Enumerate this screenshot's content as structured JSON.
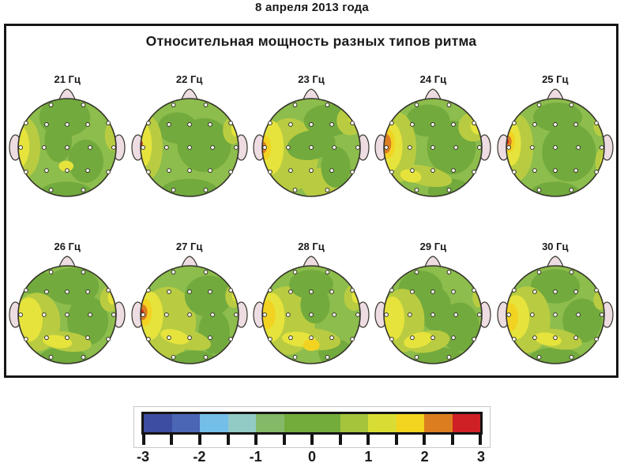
{
  "page": {
    "date_title": "8 апреля 2013 года"
  },
  "chart_data": {
    "type": "heatmap",
    "subtype": "eeg-topographic-map-grid",
    "title": "Относительная мощность разных типов ритма",
    "date_label": "8 апреля 2013 года",
    "grid": {
      "rows": 2,
      "cols": 5
    },
    "frequency_unit": "Гц",
    "value_scale": {
      "min": -3,
      "max": 3,
      "minor_step": 0.5,
      "tick_labels": [
        "-3",
        "-2",
        "-1",
        "0",
        "1",
        "2",
        "3"
      ]
    },
    "colorbar": {
      "segment_colors": [
        "#3d4da1",
        "#4a66b4",
        "#74bfe8",
        "#92cbc5",
        "#83b967",
        "#74ac3c",
        "#74ac3c",
        "#a3c43b",
        "#d9dd33",
        "#f3d41e",
        "#dc7e20",
        "#cf2026"
      ]
    },
    "head": {
      "base_color": "#8dbd4c",
      "outline_color": "#35352b",
      "skin_color": "#eddce2",
      "electrode_fill": "#fffef4",
      "electrode_count": 19,
      "electrode_positions": [
        [
          -0.33,
          -0.87
        ],
        [
          0.33,
          -0.87
        ],
        [
          -0.84,
          -0.5
        ],
        [
          -0.42,
          -0.47
        ],
        [
          0,
          -0.47
        ],
        [
          0.42,
          -0.47
        ],
        [
          0.84,
          -0.5
        ],
        [
          -0.95,
          0
        ],
        [
          -0.47,
          0
        ],
        [
          0,
          0
        ],
        [
          0.47,
          0
        ],
        [
          0.95,
          0
        ],
        [
          -0.84,
          0.5
        ],
        [
          -0.42,
          0.47
        ],
        [
          0,
          0.47
        ],
        [
          0.42,
          0.47
        ],
        [
          0.84,
          0.5
        ],
        [
          -0.33,
          0.87
        ],
        [
          0.33,
          0.87
        ]
      ]
    },
    "palette": {
      "dark": "#72aa3d",
      "yg": "#b9cc41",
      "yellow": "#e6e33c",
      "gold": "#f3d322",
      "orange": "#dc7e22",
      "red": "#cc2c20"
    },
    "blob_format": "c=palette key; x,y=center in head radii (+x right, +y down); rx,ry=radii; rot=degrees",
    "maps": [
      {
        "label": "21 Гц",
        "freq_hz": 21,
        "blobs": [
          {
            "c": "dark",
            "x": -0.05,
            "y": -0.62,
            "rx": 0.52,
            "ry": 0.4,
            "rot": 0
          },
          {
            "c": "dark",
            "x": -0.18,
            "y": -0.15,
            "rx": 0.28,
            "ry": 0.45,
            "rot": 0
          },
          {
            "c": "dark",
            "x": 0.38,
            "y": 0.28,
            "rx": 0.36,
            "ry": 0.44,
            "rot": 0
          },
          {
            "c": "dark",
            "x": -0.02,
            "y": 0.95,
            "rx": 0.55,
            "ry": 0.25,
            "rot": 0
          },
          {
            "c": "yg",
            "x": -0.88,
            "y": 0.0,
            "rx": 0.33,
            "ry": 0.62,
            "rot": 0
          },
          {
            "c": "yellow",
            "x": -0.97,
            "y": -0.02,
            "rx": 0.2,
            "ry": 0.42,
            "rot": 0
          },
          {
            "c": "yg",
            "x": 0.95,
            "y": -0.25,
            "rx": 0.18,
            "ry": 0.32,
            "rot": 0
          },
          {
            "c": "yellow",
            "x": -0.02,
            "y": 0.38,
            "rx": 0.15,
            "ry": 0.11,
            "rot": 0
          }
        ]
      },
      {
        "label": "22 Гц",
        "freq_hz": 22,
        "blobs": [
          {
            "c": "dark",
            "x": 0.3,
            "y": -0.05,
            "rx": 0.55,
            "ry": 0.55,
            "rot": 0
          },
          {
            "c": "dark",
            "x": -0.25,
            "y": -0.4,
            "rx": 0.4,
            "ry": 0.32,
            "rot": 0
          },
          {
            "c": "dark",
            "x": 0.0,
            "y": 0.92,
            "rx": 0.6,
            "ry": 0.28,
            "rot": 0
          },
          {
            "c": "yg",
            "x": -0.85,
            "y": 0.0,
            "rx": 0.3,
            "ry": 0.65,
            "rot": 0
          },
          {
            "c": "yellow",
            "x": -0.95,
            "y": -0.05,
            "rx": 0.18,
            "ry": 0.45,
            "rot": 0
          },
          {
            "c": "yg",
            "x": 0.88,
            "y": -0.35,
            "rx": 0.2,
            "ry": 0.28,
            "rot": 0
          },
          {
            "c": "yellow",
            "x": 0.95,
            "y": -0.38,
            "rx": 0.1,
            "ry": 0.16,
            "rot": 0
          },
          {
            "c": "red",
            "x": -1.0,
            "y": -0.08,
            "rx": 0.045,
            "ry": 0.06,
            "rot": 0
          }
        ]
      },
      {
        "label": "23 Гц",
        "freq_hz": 23,
        "blobs": [
          {
            "c": "yg",
            "x": -0.45,
            "y": 0.15,
            "rx": 0.6,
            "ry": 0.75,
            "rot": 0
          },
          {
            "c": "yg",
            "x": 0.3,
            "y": 0.75,
            "rx": 0.5,
            "ry": 0.35,
            "rot": 0
          },
          {
            "c": "dark",
            "x": 0.35,
            "y": -0.55,
            "rx": 0.5,
            "ry": 0.33,
            "rot": 0
          },
          {
            "c": "dark",
            "x": 0.0,
            "y": -0.05,
            "rx": 0.5,
            "ry": 0.3,
            "rot": -10
          },
          {
            "c": "dark",
            "x": 0.5,
            "y": 0.4,
            "rx": 0.3,
            "ry": 0.42,
            "rot": 0
          },
          {
            "c": "yellow",
            "x": -0.82,
            "y": 0.0,
            "rx": 0.26,
            "ry": 0.55,
            "rot": 0
          },
          {
            "c": "gold",
            "x": -0.95,
            "y": 0.0,
            "rx": 0.13,
            "ry": 0.26,
            "rot": 0
          },
          {
            "c": "orange",
            "x": -0.99,
            "y": 0.0,
            "rx": 0.08,
            "ry": 0.12,
            "rot": 0
          },
          {
            "c": "red",
            "x": -1.0,
            "y": 0.0,
            "rx": 0.04,
            "ry": 0.05,
            "rot": 0
          },
          {
            "c": "yg",
            "x": 0.8,
            "y": -0.55,
            "rx": 0.28,
            "ry": 0.3,
            "rot": 0
          },
          {
            "c": "yellow",
            "x": 0.9,
            "y": -0.6,
            "rx": 0.13,
            "ry": 0.16,
            "rot": 0
          }
        ]
      },
      {
        "label": "24 Гц",
        "freq_hz": 24,
        "blobs": [
          {
            "c": "dark",
            "x": 0.38,
            "y": 0.0,
            "rx": 0.5,
            "ry": 0.55,
            "rot": 0
          },
          {
            "c": "dark",
            "x": -0.1,
            "y": -0.55,
            "rx": 0.45,
            "ry": 0.33,
            "rot": 0
          },
          {
            "c": "dark",
            "x": 0.35,
            "y": 0.9,
            "rx": 0.45,
            "ry": 0.26,
            "rot": 0
          },
          {
            "c": "yg",
            "x": -0.72,
            "y": 0.0,
            "rx": 0.38,
            "ry": 0.72,
            "rot": 0
          },
          {
            "c": "yellow",
            "x": -0.87,
            "y": -0.02,
            "rx": 0.25,
            "ry": 0.5,
            "rot": 0
          },
          {
            "c": "yg",
            "x": -0.15,
            "y": 0.58,
            "rx": 0.55,
            "ry": 0.2,
            "rot": 12
          },
          {
            "c": "yellow",
            "x": -0.45,
            "y": 0.58,
            "rx": 0.22,
            "ry": 0.13,
            "rot": 12
          },
          {
            "c": "gold",
            "x": -0.93,
            "y": -0.08,
            "rx": 0.16,
            "ry": 0.3,
            "rot": 0
          },
          {
            "c": "orange",
            "x": -0.96,
            "y": -0.08,
            "rx": 0.11,
            "ry": 0.2,
            "rot": 0
          },
          {
            "c": "yg",
            "x": 0.82,
            "y": -0.42,
            "rx": 0.3,
            "ry": 0.3,
            "rot": 0
          },
          {
            "c": "yellow",
            "x": 0.92,
            "y": -0.45,
            "rx": 0.15,
            "ry": 0.18,
            "rot": 0
          }
        ]
      },
      {
        "label": "25 Гц",
        "freq_hz": 25,
        "blobs": [
          {
            "c": "dark",
            "x": 0.28,
            "y": 0.1,
            "rx": 0.55,
            "ry": 0.6,
            "rot": 0
          },
          {
            "c": "dark",
            "x": 0.05,
            "y": -0.62,
            "rx": 0.5,
            "ry": 0.3,
            "rot": 0
          },
          {
            "c": "dark",
            "x": 0.0,
            "y": 0.93,
            "rx": 0.5,
            "ry": 0.23,
            "rot": 0
          },
          {
            "c": "yg",
            "x": -0.78,
            "y": 0.0,
            "rx": 0.33,
            "ry": 0.68,
            "rot": 0
          },
          {
            "c": "yellow",
            "x": -0.9,
            "y": -0.08,
            "rx": 0.2,
            "ry": 0.45,
            "rot": 0
          },
          {
            "c": "gold",
            "x": -0.94,
            "y": -0.12,
            "rx": 0.12,
            "ry": 0.22,
            "rot": 0
          },
          {
            "c": "orange",
            "x": -0.97,
            "y": -0.12,
            "rx": 0.08,
            "ry": 0.12,
            "rot": 0
          },
          {
            "c": "red",
            "x": -0.99,
            "y": -0.12,
            "rx": 0.04,
            "ry": 0.05,
            "rot": 0
          },
          {
            "c": "yg",
            "x": 0.93,
            "y": -0.45,
            "rx": 0.15,
            "ry": 0.22,
            "rot": 0
          },
          {
            "c": "yg",
            "x": 0.95,
            "y": 0.3,
            "rx": 0.13,
            "ry": 0.28,
            "rot": 0
          },
          {
            "c": "yellow",
            "x": 0.99,
            "y": 0.32,
            "rx": 0.07,
            "ry": 0.15,
            "rot": 0
          }
        ]
      },
      {
        "label": "26 Гц",
        "freq_hz": 26,
        "blobs": [
          {
            "c": "dark",
            "x": 0.1,
            "y": -0.58,
            "rx": 0.55,
            "ry": 0.38,
            "rot": 0
          },
          {
            "c": "dark",
            "x": -0.55,
            "y": -0.6,
            "rx": 0.3,
            "ry": 0.28,
            "rot": 0
          },
          {
            "c": "dark",
            "x": 0.42,
            "y": 0.12,
            "rx": 0.42,
            "ry": 0.5,
            "rot": 0
          },
          {
            "c": "dark",
            "x": -0.08,
            "y": 0.92,
            "rx": 0.5,
            "ry": 0.26,
            "rot": 0
          },
          {
            "c": "yg",
            "x": -0.62,
            "y": 0.15,
            "rx": 0.48,
            "ry": 0.6,
            "rot": 0
          },
          {
            "c": "yg",
            "x": 0.0,
            "y": 0.55,
            "rx": 0.5,
            "ry": 0.2,
            "rot": 8
          },
          {
            "c": "yellow",
            "x": -0.78,
            "y": 0.1,
            "rx": 0.28,
            "ry": 0.45,
            "rot": 0
          },
          {
            "c": "yellow",
            "x": -0.2,
            "y": 0.55,
            "rx": 0.3,
            "ry": 0.13,
            "rot": 8
          },
          {
            "c": "yg",
            "x": 0.87,
            "y": -0.32,
            "rx": 0.2,
            "ry": 0.26,
            "rot": 0
          },
          {
            "c": "yellow",
            "x": 0.93,
            "y": -0.35,
            "rx": 0.1,
            "ry": 0.14,
            "rot": 0
          }
        ]
      },
      {
        "label": "27 Гц",
        "freq_hz": 27,
        "blobs": [
          {
            "c": "yg",
            "x": -0.45,
            "y": 0.15,
            "rx": 0.58,
            "ry": 0.72,
            "rot": 0
          },
          {
            "c": "dark",
            "x": 0.38,
            "y": -0.38,
            "rx": 0.48,
            "ry": 0.42,
            "rot": 0
          },
          {
            "c": "dark",
            "x": 0.5,
            "y": 0.35,
            "rx": 0.32,
            "ry": 0.45,
            "rot": 0
          },
          {
            "c": "dark",
            "x": 0.1,
            "y": 0.95,
            "rx": 0.45,
            "ry": 0.22,
            "rot": 0
          },
          {
            "c": "yellow",
            "x": -0.82,
            "y": 0.02,
            "rx": 0.28,
            "ry": 0.5,
            "rot": 0
          },
          {
            "c": "yg",
            "x": -0.05,
            "y": 0.5,
            "rx": 0.5,
            "ry": 0.2,
            "rot": 15
          },
          {
            "c": "yellow",
            "x": -0.3,
            "y": 0.45,
            "rx": 0.3,
            "ry": 0.14,
            "rot": 15
          },
          {
            "c": "gold",
            "x": -0.92,
            "y": -0.05,
            "rx": 0.15,
            "ry": 0.28,
            "rot": 0
          },
          {
            "c": "orange",
            "x": -0.96,
            "y": -0.05,
            "rx": 0.1,
            "ry": 0.16,
            "rot": 0
          },
          {
            "c": "red",
            "x": -0.98,
            "y": -0.05,
            "rx": 0.045,
            "ry": 0.06,
            "rot": 0
          },
          {
            "c": "yg",
            "x": 0.9,
            "y": -0.38,
            "rx": 0.17,
            "ry": 0.24,
            "rot": 0
          },
          {
            "c": "yellow",
            "x": 0.95,
            "y": -0.4,
            "rx": 0.08,
            "ry": 0.13,
            "rot": 0
          }
        ]
      },
      {
        "label": "28 Гц",
        "freq_hz": 28,
        "blobs": [
          {
            "c": "yg",
            "x": -0.5,
            "y": 0.12,
            "rx": 0.58,
            "ry": 0.7,
            "rot": 0
          },
          {
            "c": "dark",
            "x": 0.0,
            "y": -0.62,
            "rx": 0.45,
            "ry": 0.3,
            "rot": 0
          },
          {
            "c": "dark",
            "x": 0.08,
            "y": -0.2,
            "rx": 0.3,
            "ry": 0.38,
            "rot": 0
          },
          {
            "c": "dark",
            "x": 0.5,
            "y": 0.78,
            "rx": 0.35,
            "ry": 0.28,
            "rot": 0
          },
          {
            "c": "yg",
            "x": 0.05,
            "y": 0.5,
            "rx": 0.55,
            "ry": 0.22,
            "rot": 6
          },
          {
            "c": "yellow",
            "x": -0.82,
            "y": 0.05,
            "rx": 0.28,
            "ry": 0.5,
            "rot": 0
          },
          {
            "c": "yellow",
            "x": -0.25,
            "y": 0.5,
            "rx": 0.35,
            "ry": 0.15,
            "rot": 6
          },
          {
            "c": "gold",
            "x": -0.9,
            "y": 0.0,
            "rx": 0.17,
            "ry": 0.3,
            "rot": 0
          },
          {
            "c": "gold",
            "x": 0.0,
            "y": 0.62,
            "rx": 0.17,
            "ry": 0.12,
            "rot": 0
          },
          {
            "c": "red",
            "x": -1.0,
            "y": 0.0,
            "rx": 0.04,
            "ry": 0.05,
            "rot": 0
          },
          {
            "c": "yg",
            "x": 0.87,
            "y": -0.35,
            "rx": 0.2,
            "ry": 0.27,
            "rot": 0
          },
          {
            "c": "yellow",
            "x": 0.93,
            "y": -0.38,
            "rx": 0.1,
            "ry": 0.14,
            "rot": 0
          }
        ]
      },
      {
        "label": "29 Гц",
        "freq_hz": 29,
        "blobs": [
          {
            "c": "dark",
            "x": -0.25,
            "y": -0.52,
            "rx": 0.45,
            "ry": 0.38,
            "rot": 0
          },
          {
            "c": "dark",
            "x": 0.05,
            "y": -0.12,
            "rx": 0.33,
            "ry": 0.45,
            "rot": 0
          },
          {
            "c": "dark",
            "x": 0.55,
            "y": 0.25,
            "rx": 0.4,
            "ry": 0.5,
            "rot": 0
          },
          {
            "c": "dark",
            "x": 0.15,
            "y": 0.92,
            "rx": 0.5,
            "ry": 0.25,
            "rot": 0
          },
          {
            "c": "yg",
            "x": -0.62,
            "y": 0.12,
            "rx": 0.45,
            "ry": 0.65,
            "rot": 0
          },
          {
            "c": "yg",
            "x": -0.1,
            "y": 0.55,
            "rx": 0.45,
            "ry": 0.22,
            "rot": -10
          },
          {
            "c": "yellow",
            "x": -0.82,
            "y": 0.08,
            "rx": 0.24,
            "ry": 0.45,
            "rot": 0
          },
          {
            "c": "yellow",
            "x": -0.3,
            "y": 0.52,
            "rx": 0.3,
            "ry": 0.15,
            "rot": -15
          },
          {
            "c": "yg",
            "x": 0.93,
            "y": -0.35,
            "rx": 0.12,
            "ry": 0.2,
            "rot": 0
          }
        ]
      },
      {
        "label": "30 Гц",
        "freq_hz": 30,
        "blobs": [
          {
            "c": "dark",
            "x": 0.0,
            "y": -0.58,
            "rx": 0.5,
            "ry": 0.35,
            "rot": 0
          },
          {
            "c": "dark",
            "x": 0.55,
            "y": 0.12,
            "rx": 0.4,
            "ry": 0.45,
            "rot": 0
          },
          {
            "c": "dark",
            "x": 0.0,
            "y": 0.92,
            "rx": 0.55,
            "ry": 0.25,
            "rot": 0
          },
          {
            "c": "yg",
            "x": -0.58,
            "y": 0.1,
            "rx": 0.48,
            "ry": 0.68,
            "rot": 0
          },
          {
            "c": "yg",
            "x": 0.05,
            "y": 0.5,
            "rx": 0.5,
            "ry": 0.2,
            "rot": 10
          },
          {
            "c": "yellow",
            "x": -0.8,
            "y": 0.05,
            "rx": 0.27,
            "ry": 0.45,
            "rot": 0
          },
          {
            "c": "yellow",
            "x": -0.15,
            "y": 0.5,
            "rx": 0.28,
            "ry": 0.13,
            "rot": 10
          },
          {
            "c": "gold",
            "x": -0.9,
            "y": 0.05,
            "rx": 0.14,
            "ry": 0.28,
            "rot": 0
          },
          {
            "c": "yg",
            "x": 0.92,
            "y": -0.3,
            "rx": 0.14,
            "ry": 0.2,
            "rot": 0
          }
        ]
      }
    ]
  }
}
